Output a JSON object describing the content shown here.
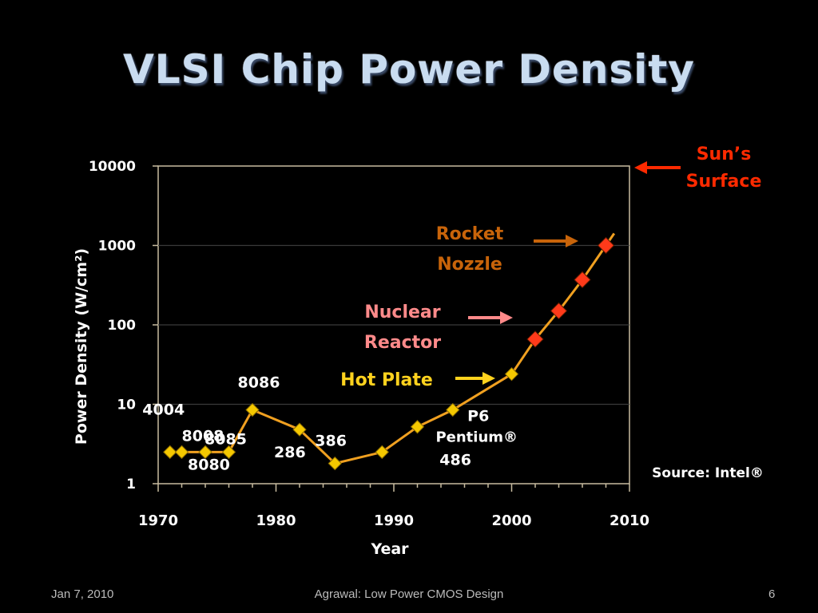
{
  "slide": {
    "title": "VLSI Chip Power Density",
    "footer_left": "Jan 7, 2010",
    "footer_center": "Agrawal: Low Power CMOS Design",
    "footer_right": "6"
  },
  "chart_data": {
    "type": "line",
    "xlabel": "Year",
    "ylabel": "Power Density (W/cm²)",
    "yscale": "log",
    "xlim": [
      1970,
      2010
    ],
    "ylim": [
      1,
      10000
    ],
    "x_ticks": [
      1970,
      1980,
      1990,
      2000,
      2010
    ],
    "y_ticks": [
      1,
      10,
      100,
      1000,
      10000
    ],
    "y_tick_labels": [
      "1",
      "10",
      "100",
      "1000",
      "10000"
    ],
    "grid": "horizontal",
    "series": [
      {
        "color": "#f0a020",
        "points": [
          {
            "x": 1971,
            "y": 2.5,
            "label": "4004",
            "marker": "#f5c800"
          },
          {
            "x": 1972,
            "y": 2.5,
            "label": "8008",
            "marker": "#f5c800"
          },
          {
            "x": 1974,
            "y": 2.5,
            "label": "8080",
            "marker": "#f5c800"
          },
          {
            "x": 1976,
            "y": 2.5,
            "label": "8085",
            "marker": "#f5c800"
          },
          {
            "x": 1978,
            "y": 8.5,
            "label": "8086",
            "marker": "#f5c800"
          },
          {
            "x": 1982,
            "y": 4.8,
            "label": "286",
            "marker": "#f5c800"
          },
          {
            "x": 1985,
            "y": 1.8,
            "label": "386",
            "marker": "#f5c800"
          },
          {
            "x": 1989,
            "y": 2.5,
            "label": "486",
            "marker": "#f5c800"
          },
          {
            "x": 1992,
            "y": 5.2,
            "label": "",
            "marker": "#f5c800"
          },
          {
            "x": 1995,
            "y": 8.5,
            "label": "P6",
            "marker": "#f5c800"
          },
          {
            "x": 2000,
            "y": 24,
            "label": "",
            "marker": "#f5c800"
          },
          {
            "x": 2002,
            "y": 66,
            "label": "",
            "marker": "#ff3a1a"
          },
          {
            "x": 2004,
            "y": 150,
            "label": "",
            "marker": "#ff3a1a"
          },
          {
            "x": 2006,
            "y": 370,
            "label": "",
            "marker": "#ff3a1a"
          },
          {
            "x": 2008,
            "y": 1000,
            "label": "",
            "marker": "#ff3a1a"
          }
        ]
      }
    ],
    "extra_labels": {
      "pentium": "Pentium®"
    },
    "annotations": [
      {
        "lines": [
          "Sun’s",
          "Surface"
        ],
        "color": "#ff2a00",
        "y": 10000
      },
      {
        "lines": [
          "Rocket",
          "Nozzle"
        ],
        "color": "#c8640a",
        "y": 1000
      },
      {
        "lines": [
          "Nuclear",
          "Reactor"
        ],
        "color": "#ff8a8a",
        "y": 100
      },
      {
        "lines": [
          "Hot Plate"
        ],
        "color": "#ffd21e",
        "y": 30
      }
    ],
    "source": "Source: Intel®"
  }
}
